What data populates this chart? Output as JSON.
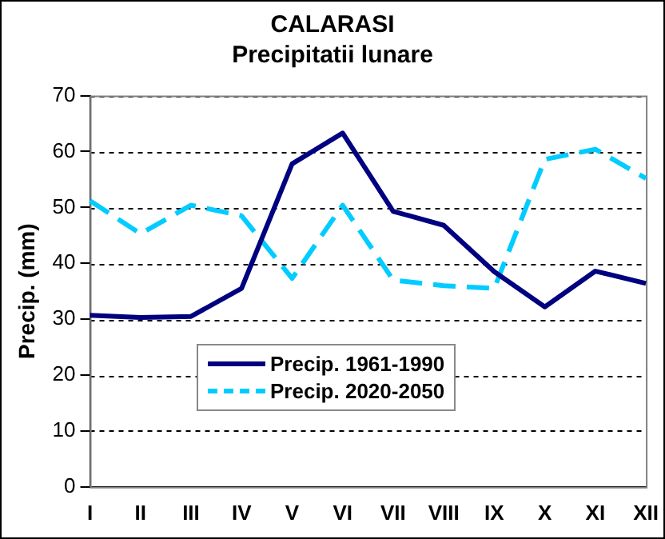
{
  "chart_data": {
    "type": "line",
    "title": "CALARASI",
    "subtitle": "Precipitatii lunare",
    "ylabel": "Precip. (mm)",
    "categories": [
      "I",
      "II",
      "III",
      "IV",
      "V",
      "VI",
      "VII",
      "VIII",
      "IX",
      "X",
      "XI",
      "XII"
    ],
    "series": [
      {
        "name": "Precip. 1961-1990",
        "color": "#000080",
        "line_style": "solid",
        "values": [
          30.7,
          30.3,
          30.5,
          35.5,
          57.8,
          63.3,
          49.3,
          46.8,
          38.5,
          32.2,
          38.6,
          36.4
        ]
      },
      {
        "name": "Precip. 2020-2050",
        "color": "#00ccff",
        "line_style": "dashed",
        "values": [
          51.2,
          45.3,
          50.4,
          48.5,
          37.3,
          50.4,
          37.0,
          36.0,
          35.5,
          58.6,
          60.4,
          55.2
        ]
      }
    ],
    "ylim": [
      0,
      70
    ],
    "yticks": [
      0,
      10,
      20,
      30,
      40,
      50,
      60,
      70
    ],
    "grid": "y",
    "legend": "bottom left",
    "marker": "none"
  }
}
